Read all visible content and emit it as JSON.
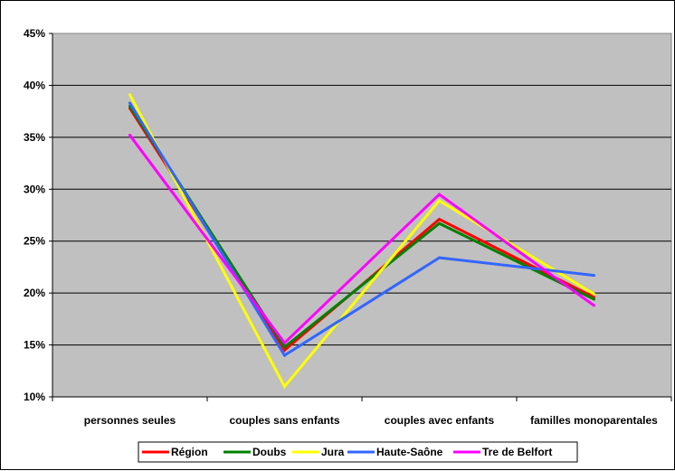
{
  "chart_data": {
    "type": "line",
    "title": "",
    "xlabel": "",
    "ylabel": "",
    "categories": [
      "personnes seules",
      "couples sans enfants",
      "couples avec enfants",
      "familles monoparentales"
    ],
    "ylim": [
      0.1,
      0.45
    ],
    "yticks": [
      0.1,
      0.15,
      0.2,
      0.25,
      0.3,
      0.35,
      0.4,
      0.45
    ],
    "ytick_labels": [
      "10%",
      "15%",
      "20%",
      "25%",
      "30%",
      "35%",
      "40%",
      "45%"
    ],
    "grid": true,
    "plot_background": "#c0c0c0",
    "legend_position": "bottom",
    "series": [
      {
        "name": "Région",
        "color": "#ff0000",
        "values": [
          0.378,
          0.145,
          0.271,
          0.196
        ]
      },
      {
        "name": "Doubs",
        "color": "#008000",
        "values": [
          0.38,
          0.148,
          0.267,
          0.194
        ]
      },
      {
        "name": "Jura",
        "color": "#ffff00",
        "values": [
          0.391,
          0.11,
          0.289,
          0.199
        ]
      },
      {
        "name": "Haute-Saône",
        "color": "#3366ff",
        "values": [
          0.383,
          0.14,
          0.234,
          0.217
        ]
      },
      {
        "name": "Tre de Belfort",
        "color": "#ff00ff",
        "values": [
          0.352,
          0.152,
          0.295,
          0.188
        ]
      }
    ]
  }
}
